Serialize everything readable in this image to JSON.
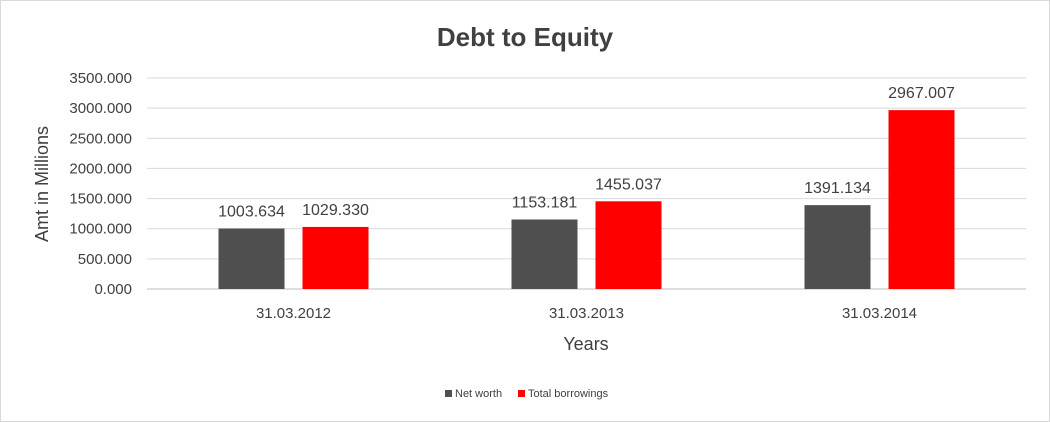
{
  "colors": {
    "net_worth": "#4f4f4f",
    "total_borrowings": "#ff0000"
  },
  "chart_data": {
    "type": "bar",
    "title": "Debt to Equity",
    "xlabel": "Years",
    "ylabel": "Amt in Millions",
    "categories": [
      "31.03.2012",
      "31.03.2013",
      "31.03.2014"
    ],
    "series": [
      {
        "name": "Net worth",
        "values": [
          1003.634,
          1153.181,
          1391.134
        ],
        "labels": [
          "1003.634",
          "1153.181",
          "1391.134"
        ]
      },
      {
        "name": "Total borrowings",
        "values": [
          1029.33,
          1455.037,
          2967.007
        ],
        "labels": [
          "1029.330",
          "1455.037",
          "2967.007"
        ]
      }
    ],
    "ylim": [
      0,
      3500
    ],
    "yticks": [
      0,
      500,
      1000,
      1500,
      2000,
      2500,
      3000,
      3500
    ],
    "ytick_labels": [
      "0.000",
      "500.000",
      "1000.000",
      "1500.000",
      "2000.000",
      "2500.000",
      "3000.000",
      "3500.000"
    ],
    "grid": true,
    "legend_position": "bottom"
  }
}
